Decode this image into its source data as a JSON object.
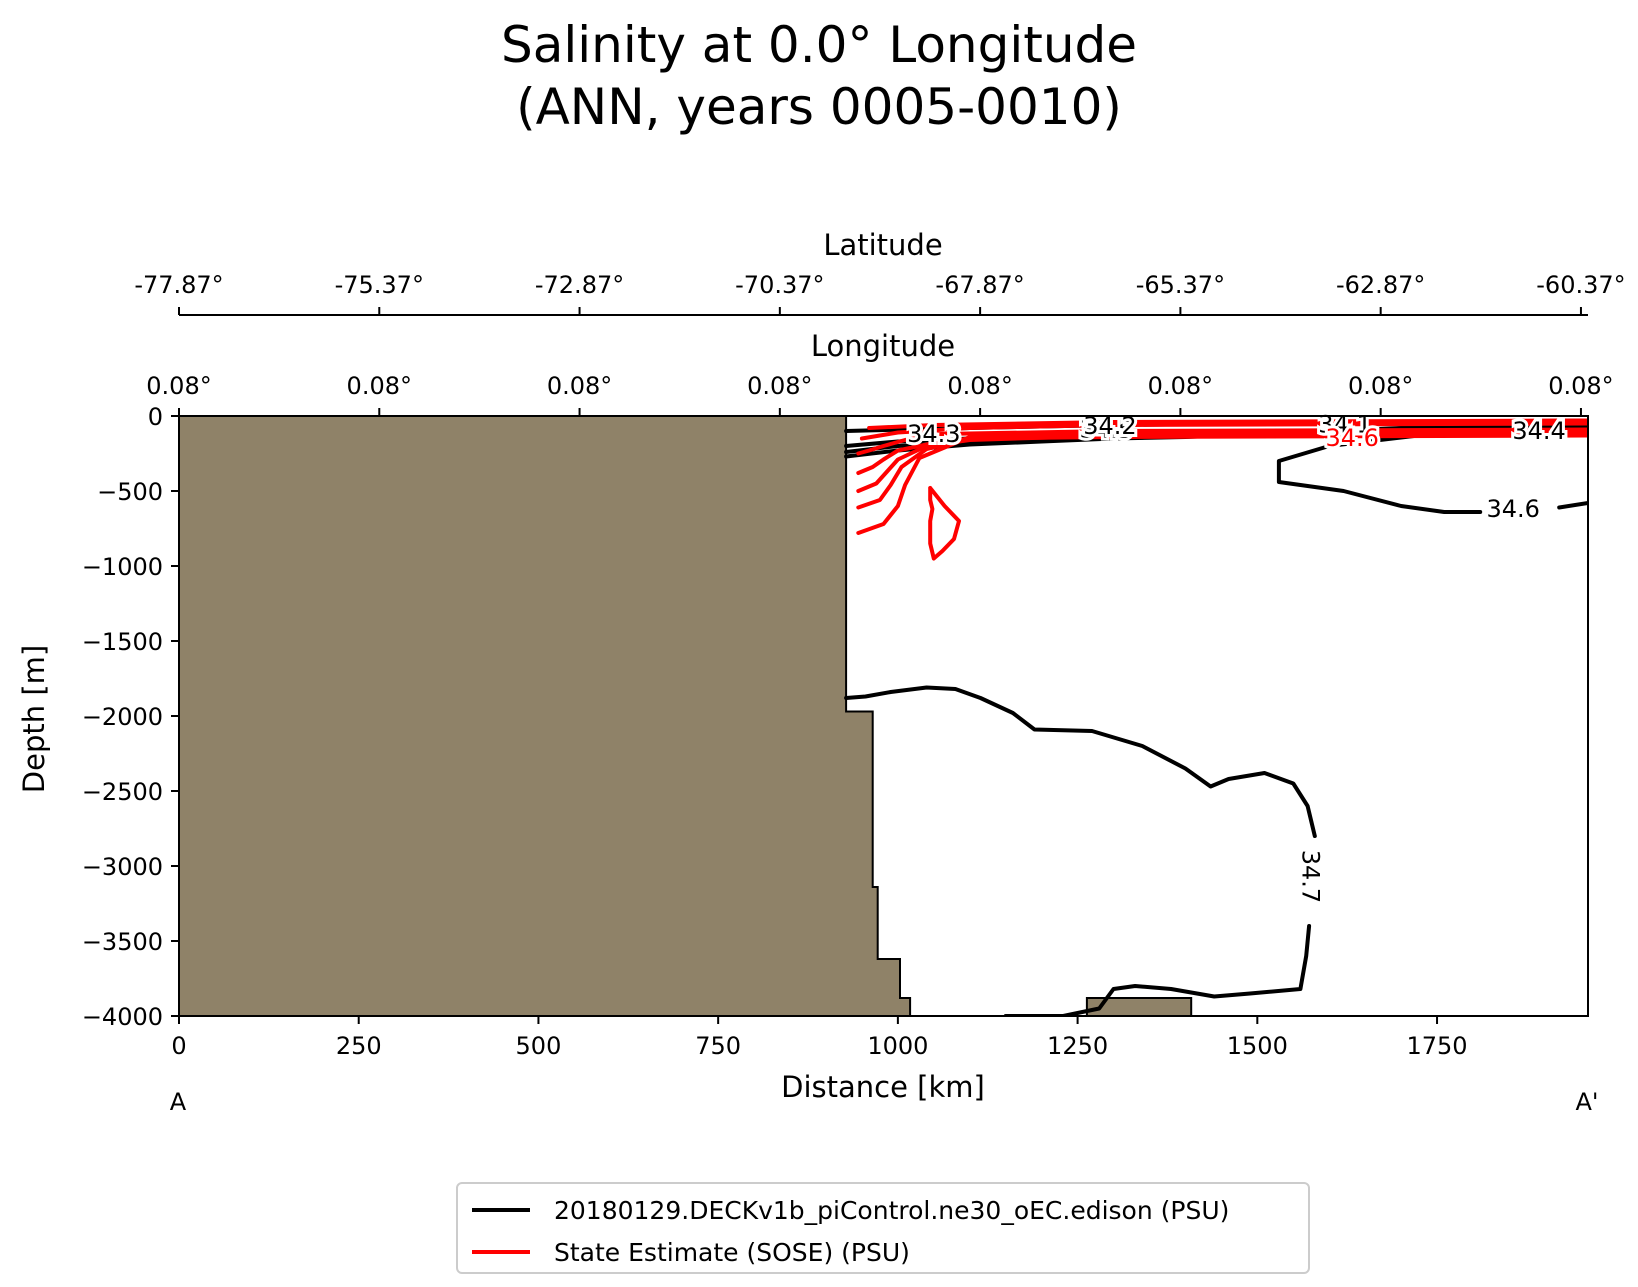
{
  "title": {
    "line1": "Salinity at 0.0° Longitude",
    "line2": "(ANN, years 0005-0010)"
  },
  "colors": {
    "land": "#8f8268",
    "model": "#000000",
    "reference": "#ff0000"
  },
  "chart_data": {
    "type": "line",
    "subtype": "contour transect",
    "xlabel": "Distance [km]",
    "ylabel": "Depth [m]",
    "xlim": [
      0,
      1960
    ],
    "ylim": [
      -4000,
      0
    ],
    "x_ticks": [
      0,
      250,
      500,
      750,
      1000,
      1250,
      1500,
      1750
    ],
    "x_tick_labels": [
      "0",
      "250",
      "500",
      "750",
      "1000",
      "1250",
      "1500",
      "1750"
    ],
    "y_ticks": [
      0,
      -500,
      -1000,
      -1500,
      -2000,
      -2500,
      -3000,
      -3500,
      -4000
    ],
    "y_tick_labels": [
      "0",
      "−500",
      "−1000",
      "−1500",
      "−2000",
      "−2500",
      "−3000",
      "−3500",
      "−4000"
    ],
    "top_axis_1": {
      "label": "Longitude",
      "ticks": [
        0,
        278.6,
        557.2,
        835.8,
        1114.4,
        1393,
        1671.6,
        1950.2
      ],
      "tick_labels": [
        "0.08°",
        "0.08°",
        "0.08°",
        "0.08°",
        "0.08°",
        "0.08°",
        "0.08°",
        "0.08°"
      ]
    },
    "top_axis_2": {
      "label": "Latitude",
      "ticks": [
        0,
        278.6,
        557.2,
        835.8,
        1114.4,
        1393,
        1671.6,
        1950.2
      ],
      "tick_labels": [
        "-77.87°",
        "-75.37°",
        "-72.87°",
        "-70.37°",
        "-67.87°",
        "-65.37°",
        "-62.87°",
        "-60.37°"
      ]
    },
    "endpoint_labels": {
      "start": "A",
      "end": "A'"
    },
    "land_mask": [
      [
        0,
        0
      ],
      [
        928,
        0
      ],
      [
        928,
        -1970
      ],
      [
        965,
        -1970
      ],
      [
        965,
        -3140
      ],
      [
        972,
        -3140
      ],
      [
        972,
        -3620
      ],
      [
        1003,
        -3620
      ],
      [
        1003,
        -3880
      ],
      [
        1017,
        -3880
      ],
      [
        1017,
        -4000
      ],
      [
        0,
        -4000
      ]
    ],
    "seamount": [
      [
        1263,
        -4000
      ],
      [
        1263,
        -3880
      ],
      [
        1408,
        -3880
      ],
      [
        1408,
        -4000
      ]
    ],
    "series": [
      {
        "name": "20180129.DECKv1b_piControl.ne30_oEC.edison (PSU)",
        "color": "#000000",
        "contours": [
          {
            "level": "34.7",
            "points": [
              [
                928,
                -1880
              ],
              [
                955,
                -1870
              ],
              [
                990,
                -1840
              ],
              [
                1040,
                -1810
              ],
              [
                1080,
                -1820
              ],
              [
                1115,
                -1880
              ],
              [
                1160,
                -1980
              ],
              [
                1190,
                -2090
              ],
              [
                1270,
                -2100
              ],
              [
                1340,
                -2200
              ],
              [
                1400,
                -2350
              ],
              [
                1435,
                -2470
              ],
              [
                1460,
                -2420
              ],
              [
                1510,
                -2380
              ],
              [
                1550,
                -2450
              ],
              [
                1570,
                -2600
              ],
              [
                1580,
                -2800
              ]
            ]
          },
          {
            "level": "34.7",
            "points": [
              [
                1572,
                -3400
              ],
              [
                1568,
                -3600
              ],
              [
                1560,
                -3820
              ],
              [
                1490,
                -3850
              ],
              [
                1440,
                -3870
              ],
              [
                1380,
                -3820
              ],
              [
                1330,
                -3800
              ],
              [
                1300,
                -3820
              ],
              [
                1280,
                -3950
              ],
              [
                1230,
                -4000
              ],
              [
                1150,
                -4000
              ]
            ]
          },
          {
            "level": "34.6",
            "points": [
              [
                1724,
                -130
              ],
              [
                1600,
                -200
              ],
              [
                1530,
                -300
              ],
              [
                1530,
                -440
              ],
              [
                1620,
                -500
              ],
              [
                1700,
                -600
              ],
              [
                1760,
                -640
              ],
              [
                1810,
                -640
              ]
            ]
          },
          {
            "level": "34.6",
            "points": [
              [
                1920,
                -610
              ],
              [
                1960,
                -580
              ]
            ]
          },
          {
            "level": "34.5",
            "points": [
              [
                928,
                -200
              ],
              [
                1000,
                -170
              ],
              [
                1100,
                -150
              ],
              [
                1200,
                -140
              ],
              [
                1300,
                -130
              ],
              [
                1400,
                -120
              ],
              [
                1500,
                -110
              ],
              [
                1600,
                -100
              ],
              [
                1700,
                -80
              ],
              [
                1960,
                -70
              ]
            ]
          },
          {
            "level": "34.4",
            "points": [
              [
                928,
                -240
              ],
              [
                1000,
                -200
              ],
              [
                1100,
                -170
              ],
              [
                1200,
                -150
              ],
              [
                1300,
                -130
              ],
              [
                1400,
                -120
              ],
              [
                1500,
                -110
              ],
              [
                1600,
                -100
              ],
              [
                1960,
                -90
              ]
            ]
          },
          {
            "level": "34.3",
            "points": [
              [
                928,
                -270
              ],
              [
                1000,
                -230
              ],
              [
                1100,
                -190
              ],
              [
                1200,
                -170
              ],
              [
                1300,
                -150
              ],
              [
                1400,
                -140
              ],
              [
                1500,
                -120
              ],
              [
                1960,
                -110
              ]
            ]
          },
          {
            "level": "34.1",
            "points": [
              [
                928,
                -100
              ],
              [
                1100,
                -80
              ],
              [
                1300,
                -60
              ],
              [
                1500,
                -50
              ],
              [
                1700,
                -40
              ],
              [
                1960,
                -30
              ]
            ]
          }
        ],
        "labels": [
          {
            "text": "34.7",
            "x": 1574,
            "y": -3070
          },
          {
            "text": "34.6",
            "x": 1856,
            "y": -620
          },
          {
            "text": "34.3",
            "x": 1050,
            "y": -120
          },
          {
            "text": "34.5",
            "x": 1290,
            "y": -90
          },
          {
            "text": "34.2",
            "x": 1295,
            "y": -65
          },
          {
            "text": "34.1",
            "x": 1622,
            "y": -55
          },
          {
            "text": "34.4",
            "x": 1892,
            "y": -100
          }
        ]
      },
      {
        "name": "State Estimate (SOSE) (PSU)",
        "color": "#ff0000",
        "contours": [
          {
            "level": "",
            "points": [
              [
                945,
                -780
              ],
              [
                980,
                -720
              ],
              [
                1000,
                -600
              ],
              [
                1010,
                -460
              ],
              [
                1030,
                -280
              ],
              [
                1100,
                -140
              ],
              [
                1300,
                -110
              ],
              [
                1960,
                -100
              ]
            ]
          },
          {
            "level": "",
            "points": [
              [
                945,
                -610
              ],
              [
                975,
                -560
              ],
              [
                990,
                -460
              ],
              [
                1005,
                -340
              ],
              [
                1040,
                -220
              ],
              [
                1100,
                -150
              ],
              [
                1300,
                -120
              ],
              [
                1960,
                -110
              ]
            ]
          },
          {
            "level": "",
            "points": [
              [
                945,
                -500
              ],
              [
                970,
                -450
              ],
              [
                985,
                -370
              ],
              [
                1000,
                -290
              ],
              [
                1040,
                -200
              ],
              [
                1100,
                -160
              ],
              [
                1300,
                -130
              ],
              [
                1960,
                -120
              ]
            ]
          },
          {
            "level": "",
            "points": [
              [
                945,
                -380
              ],
              [
                965,
                -340
              ],
              [
                980,
                -290
              ],
              [
                1000,
                -230
              ],
              [
                1050,
                -180
              ],
              [
                1100,
                -150
              ],
              [
                1300,
                -140
              ],
              [
                1960,
                -130
              ]
            ]
          },
          {
            "level": "",
            "points": [
              [
                945,
                -250
              ],
              [
                960,
                -230
              ],
              [
                980,
                -200
              ],
              [
                1010,
                -160
              ],
              [
                1060,
                -120
              ],
              [
                1300,
                -100
              ],
              [
                1960,
                -90
              ]
            ]
          },
          {
            "level": "",
            "points": [
              [
                950,
                -150
              ],
              [
                1000,
                -110
              ],
              [
                1100,
                -80
              ],
              [
                1300,
                -60
              ],
              [
                1960,
                -50
              ]
            ]
          },
          {
            "level": "",
            "points": [
              [
                960,
                -80
              ],
              [
                1050,
                -60
              ],
              [
                1300,
                -40
              ],
              [
                1960,
                -30
              ]
            ]
          },
          {
            "level": "",
            "points": [
              [
                1045,
                -480
              ],
              [
                1055,
                -540
              ],
              [
                1065,
                -600
              ],
              [
                1085,
                -700
              ],
              [
                1078,
                -820
              ],
              [
                1062,
                -900
              ],
              [
                1050,
                -950
              ],
              [
                1045,
                -850
              ],
              [
                1045,
                -700
              ],
              [
                1048,
                -620
              ],
              [
                1045,
                -560
              ],
              [
                1045,
                -480
              ]
            ]
          }
        ],
        "labels": [
          {
            "text": "34.6",
            "x": 1632,
            "y": -145
          }
        ]
      }
    ]
  }
}
